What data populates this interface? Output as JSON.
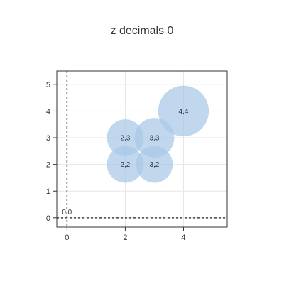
{
  "chart_data": {
    "type": "scatter",
    "title": "z decimals 0",
    "xlabel": "",
    "ylabel": "",
    "xlim": [
      -0.35,
      5.5
    ],
    "ylim": [
      -0.35,
      5.5
    ],
    "x_ticks": [
      0,
      2,
      4
    ],
    "y_ticks": [
      0,
      1,
      2,
      3,
      4,
      5
    ],
    "grid": true,
    "bubble_color": "#a8c8e8",
    "reference_lines": {
      "x": 0,
      "y": 0,
      "style": "dashed"
    },
    "origin_label": "0,0",
    "series": [
      {
        "points": [
          {
            "x": 2,
            "y": 2,
            "z": 1,
            "label": "2,2"
          },
          {
            "x": 3,
            "y": 2,
            "z": 1,
            "label": "3,2"
          },
          {
            "x": 2,
            "y": 3,
            "z": 1,
            "label": "2,3"
          },
          {
            "x": 3,
            "y": 3,
            "z": 1.08,
            "label": "3,3"
          },
          {
            "x": 4,
            "y": 4,
            "z": 1.38,
            "label": "4,4"
          }
        ]
      }
    ]
  }
}
